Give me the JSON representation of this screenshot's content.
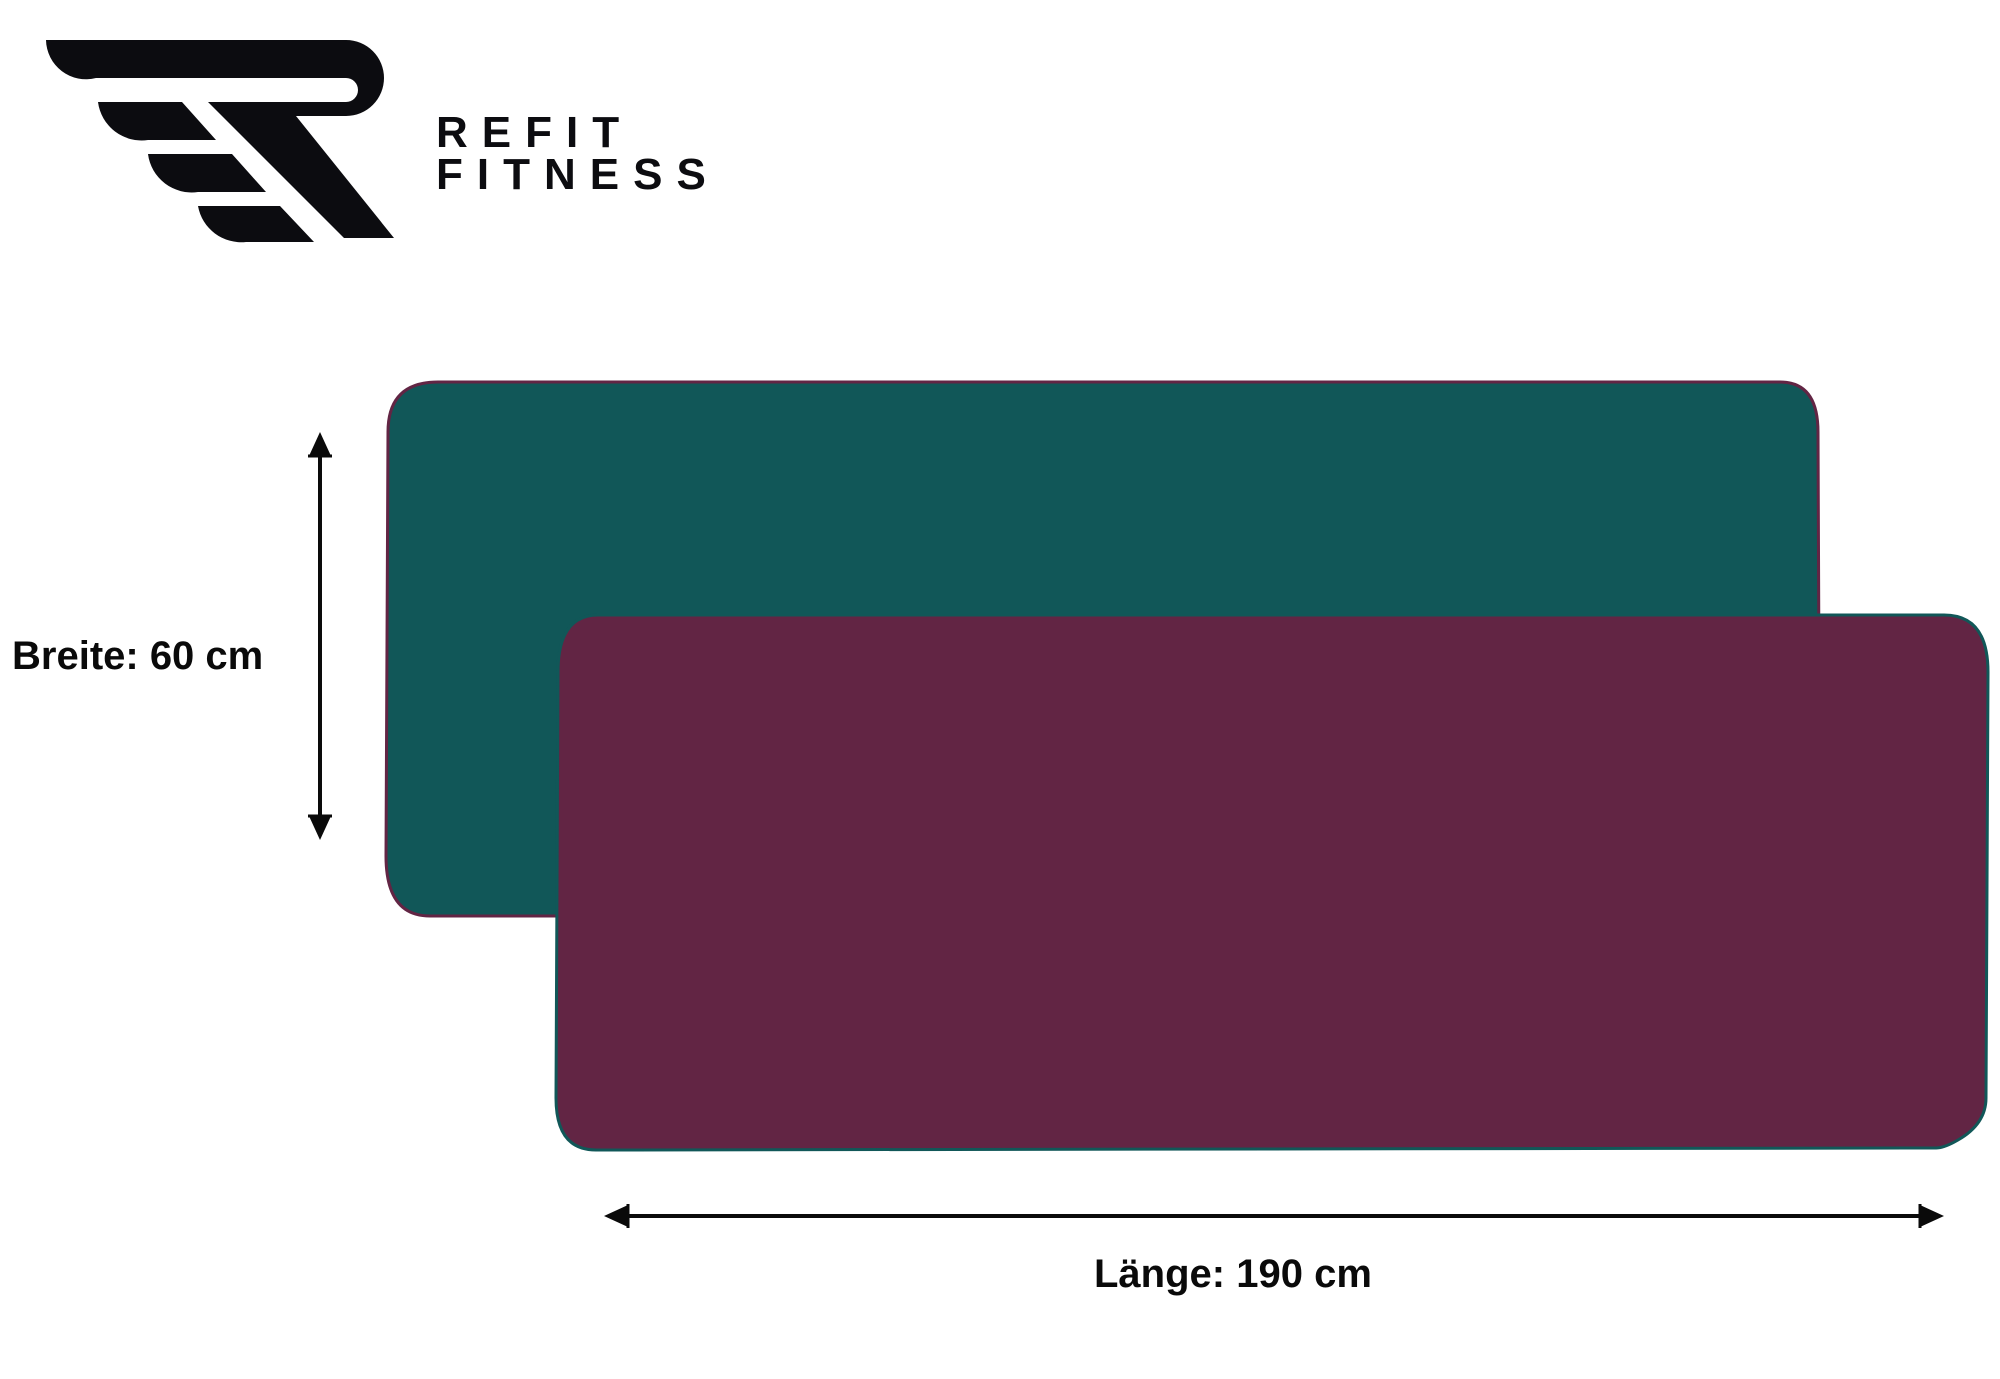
{
  "brand": {
    "line1": "REFIT",
    "line2": "FITNESS",
    "logo_icon": "winged-r-logo",
    "logo_color": "#0c0c10"
  },
  "mats": [
    {
      "name": "green-mat",
      "color": "#115758"
    },
    {
      "name": "burgundy-mat",
      "color": "#622544"
    }
  ],
  "dimensions": {
    "width_label": "Breite: 60 cm",
    "length_label": "Länge: 190 cm"
  }
}
